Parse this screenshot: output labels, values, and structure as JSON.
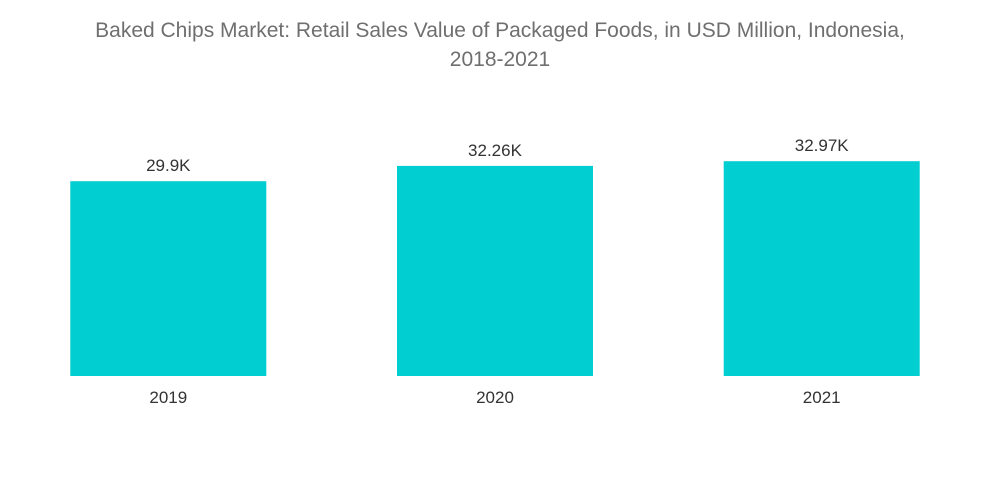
{
  "chart_data": {
    "type": "bar",
    "title_lines": [
      "Baked Chips Market: Retail Sales Value of Packaged Foods, in USD Million, Indonesia,",
      "2018-2021"
    ],
    "categories": [
      "2019",
      "2020",
      "2021"
    ],
    "values": [
      29900,
      32260,
      32970
    ],
    "data_labels": [
      "29.9K",
      "32.26K",
      "32.97K"
    ],
    "xlabel": "",
    "ylabel": "",
    "ylim": [
      0,
      37000
    ],
    "grid": false,
    "legend": "none",
    "bar_color": "#00CED1"
  }
}
